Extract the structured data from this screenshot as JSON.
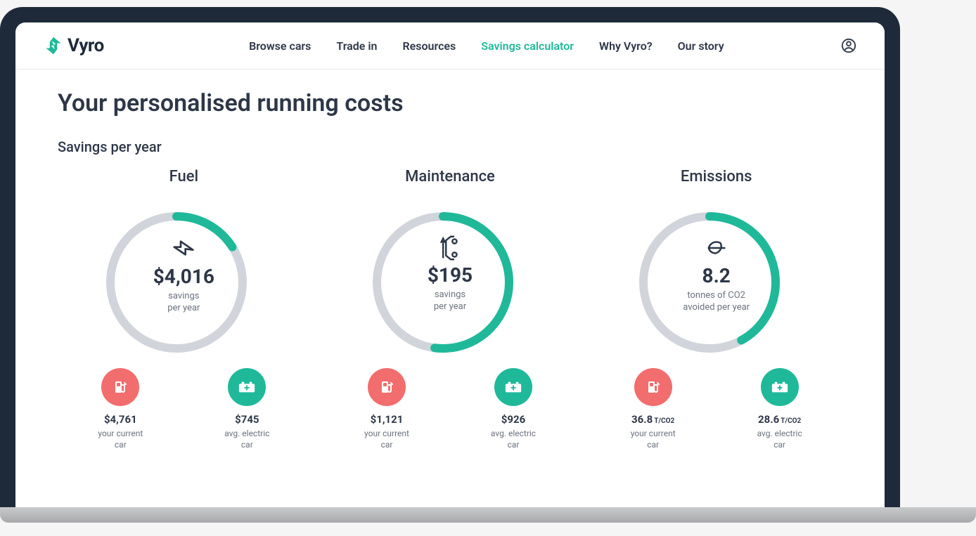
{
  "brand": {
    "name": "Vyro",
    "logo_color": "#1fb99a",
    "logo_text_color": "#1e2a3a"
  },
  "nav": {
    "items": [
      {
        "label": "Browse cars",
        "active": false
      },
      {
        "label": "Trade in",
        "active": false
      },
      {
        "label": "Resources",
        "active": false
      },
      {
        "label": "Savings calculator",
        "active": true
      },
      {
        "label": "Why Vyro?",
        "active": false
      },
      {
        "label": "Our story",
        "active": false
      }
    ]
  },
  "colors": {
    "accent": "#1fb99a",
    "track": "#d1d5db",
    "text_primary": "#2d3748",
    "text_muted": "#6b7280",
    "current_car": "#f26d6d",
    "electric_car": "#1fb99a",
    "frame": "#1e2a3a",
    "background": "#ffffff"
  },
  "page": {
    "title": "Your personalised running costs",
    "subtitle": "Savings per year"
  },
  "gauge_style": {
    "stroke_width": 12,
    "radius": 100,
    "diameter": 220
  },
  "cards": [
    {
      "key": "fuel",
      "title": "Fuel",
      "icon": "bolt-icon",
      "value": "$4,016",
      "label": "savings\nper year",
      "fill_pct": 16,
      "compare": [
        {
          "icon": "fuel-pump-icon",
          "color": "red",
          "value": "$4,761",
          "unit": "",
          "label": "your current\ncar"
        },
        {
          "icon": "battery-icon",
          "color": "green",
          "value": "$745",
          "unit": "",
          "label": "avg. electric\ncar"
        }
      ]
    },
    {
      "key": "maintenance",
      "title": "Maintenance",
      "icon": "wrench-car-icon",
      "value": "$195",
      "label": "savings\nper year",
      "fill_pct": 52,
      "compare": [
        {
          "icon": "fuel-pump-icon",
          "color": "red",
          "value": "$1,121",
          "unit": "",
          "label": "your current\ncar"
        },
        {
          "icon": "battery-icon",
          "color": "green",
          "value": "$926",
          "unit": "",
          "label": "avg. electric\ncar"
        }
      ]
    },
    {
      "key": "emissions",
      "title": "Emissions",
      "icon": "leaf-icon",
      "value": "8.2",
      "label": "tonnes of CO2\navoided per year",
      "fill_pct": 42,
      "compare": [
        {
          "icon": "fuel-pump-icon",
          "color": "red",
          "value": "36.8",
          "unit": "T/CO2",
          "label": "your current\ncar"
        },
        {
          "icon": "battery-icon",
          "color": "green",
          "value": "28.6",
          "unit": "T/CO2",
          "label": "avg. electric\ncar"
        }
      ]
    }
  ]
}
